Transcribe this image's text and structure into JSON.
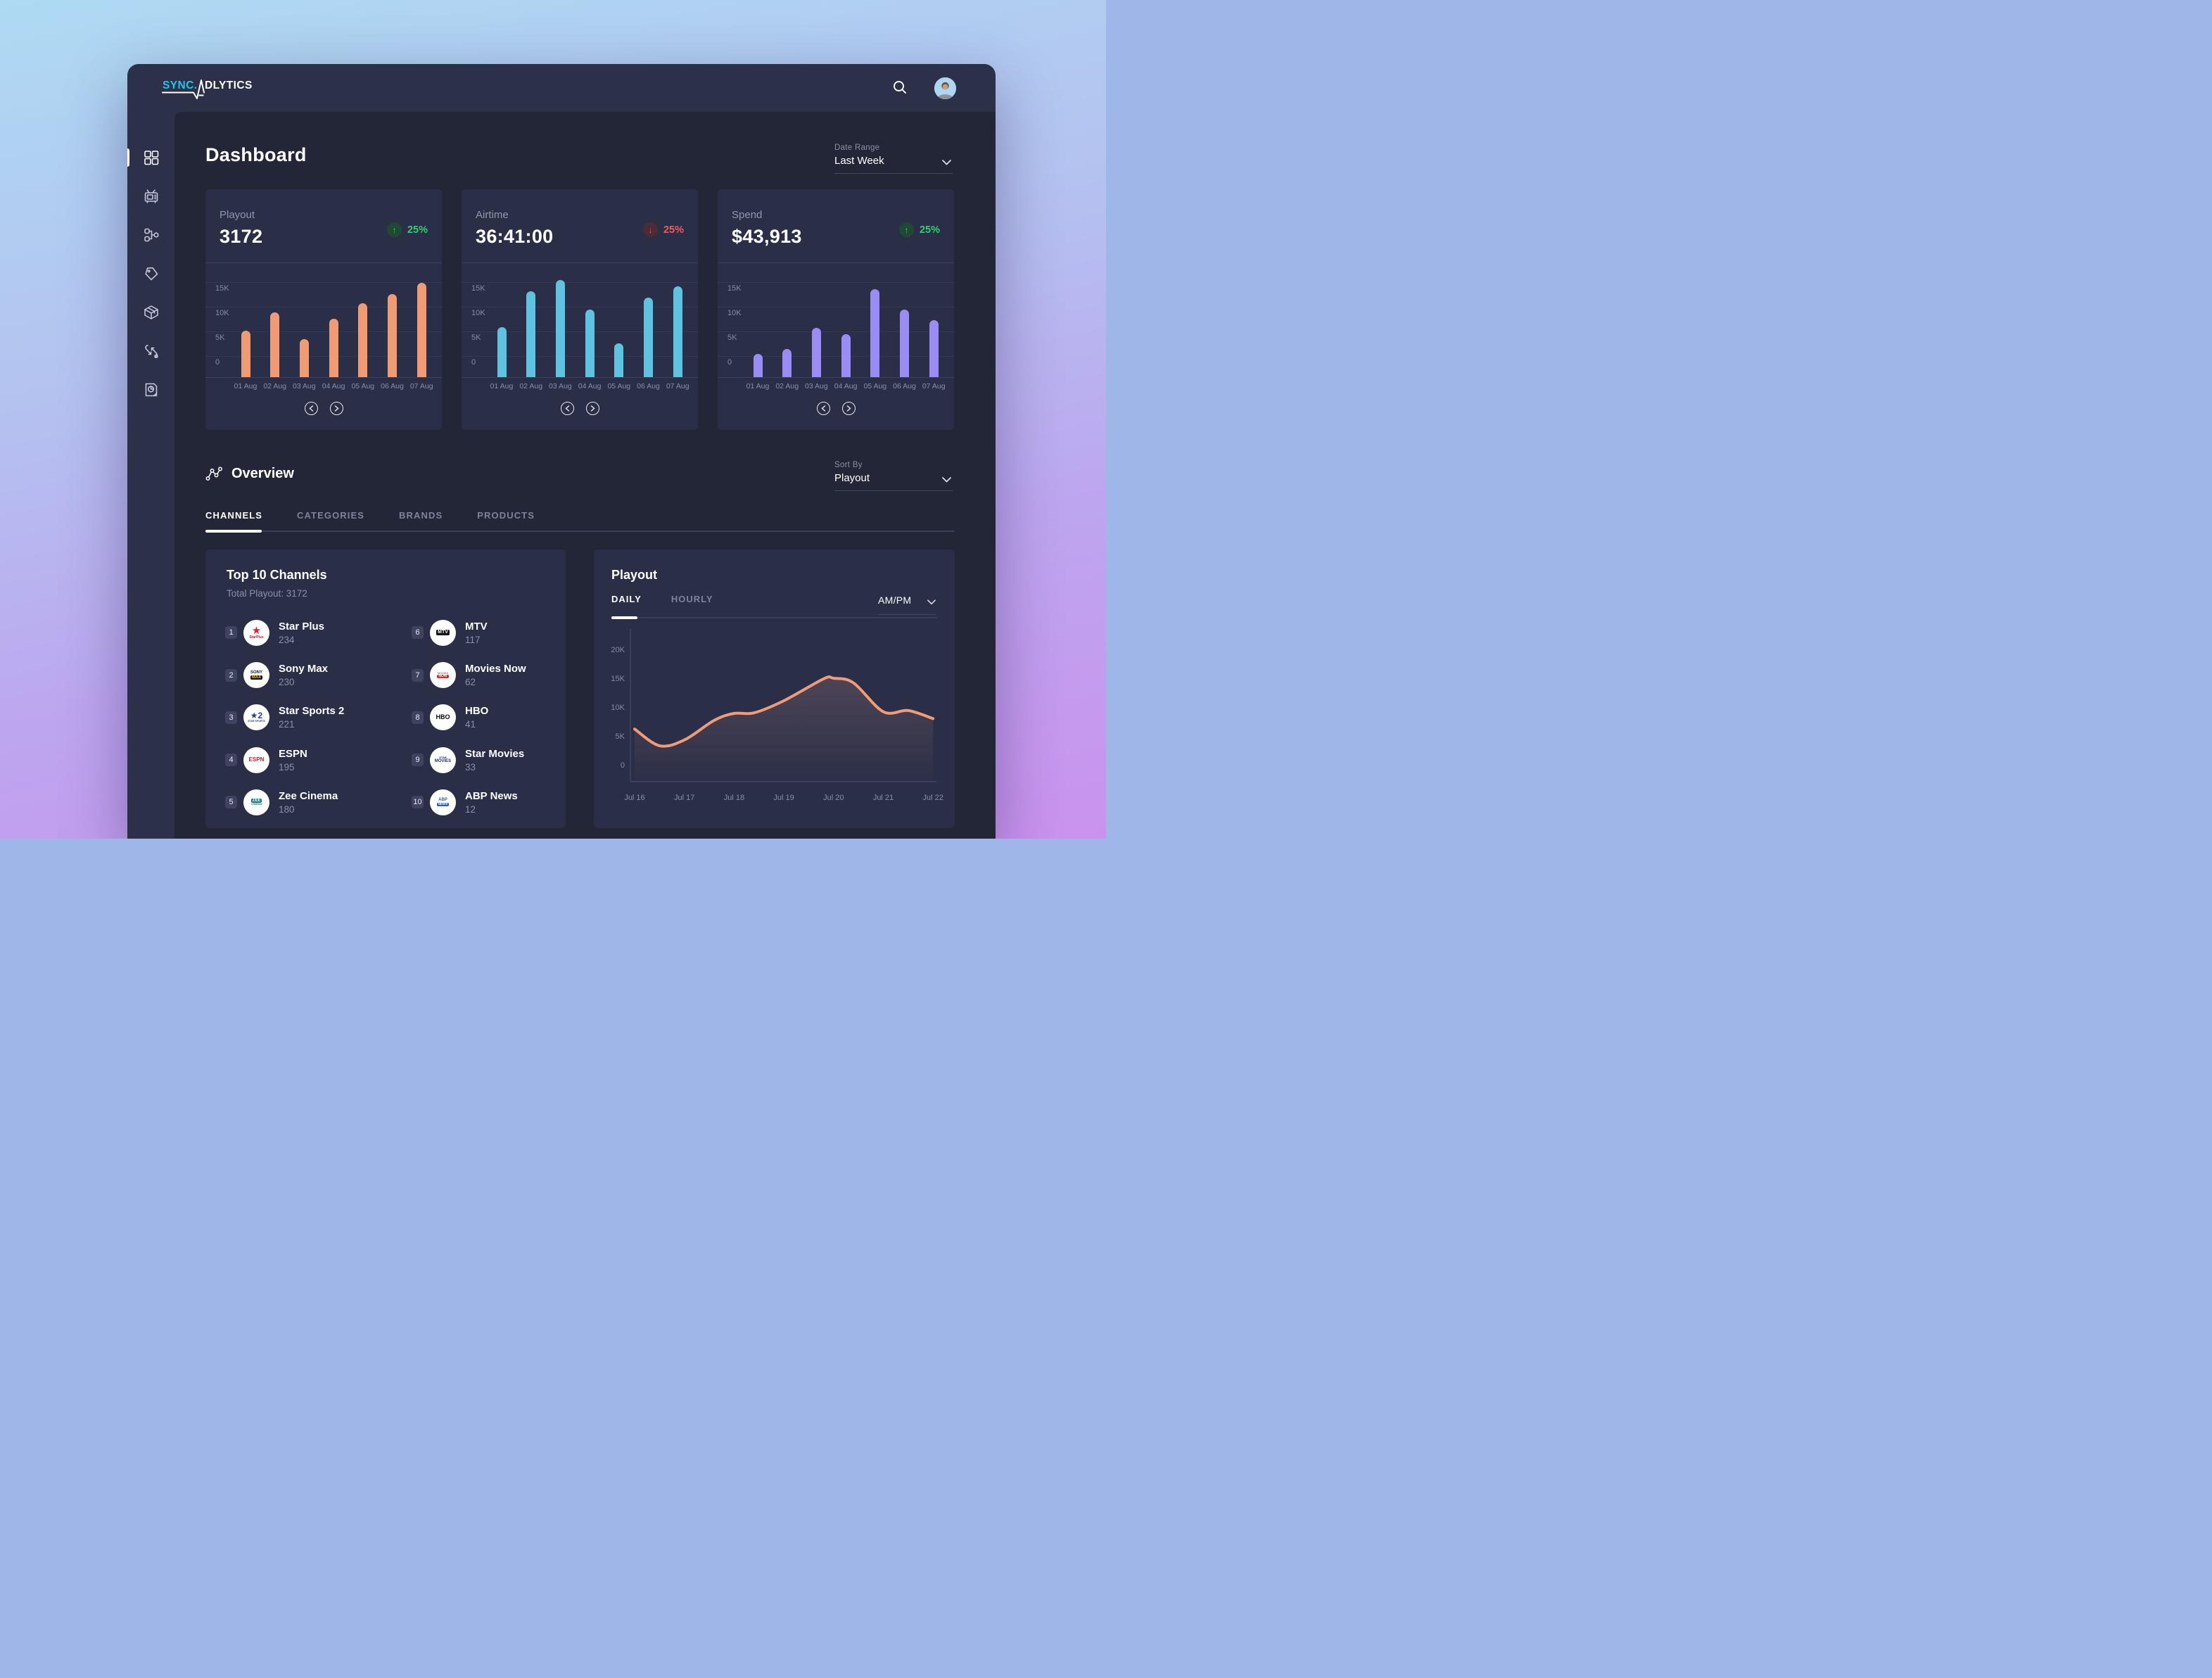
{
  "app": {
    "logo_primary": "SYNC.",
    "logo_secondary": "DLYTICS",
    "logo_accent_color": "#1fc9ea"
  },
  "header": {
    "search_icon": "magnifier",
    "avatar": "user-photo"
  },
  "sidebar": {
    "items": [
      {
        "icon": "grid-icon",
        "active": true
      },
      {
        "icon": "tv-icon",
        "active": false
      },
      {
        "icon": "flow-icon",
        "active": false
      },
      {
        "icon": "tag-icon",
        "active": false
      },
      {
        "icon": "package-icon",
        "active": false
      },
      {
        "icon": "swap-icon",
        "active": false
      },
      {
        "icon": "report-icon",
        "active": false
      }
    ]
  },
  "page_title": "Dashboard",
  "date_range": {
    "label": "Date Range",
    "value": "Last Week"
  },
  "sort_by": {
    "label": "Sort By",
    "value": "Playout"
  },
  "overview": {
    "title": "Overview",
    "tabs": [
      {
        "label": "CHANNELS",
        "active": true
      },
      {
        "label": "CATEGORIES",
        "active": false
      },
      {
        "label": "BRANDS",
        "active": false
      },
      {
        "label": "PRODUCTS",
        "active": false
      }
    ]
  },
  "stat_cards": [
    {
      "label": "Playout",
      "value": "3172",
      "delta": "25%",
      "delta_direction": "up",
      "chart_index": 0
    },
    {
      "label": "Airtime",
      "value": "36:41:00",
      "delta": "25%",
      "delta_direction": "down",
      "chart_index": 1
    },
    {
      "label": "Spend",
      "value": "$43,913",
      "delta": "25%",
      "delta_direction": "up",
      "chart_index": 2
    }
  ],
  "chart_data": [
    {
      "id": "playout-by-day",
      "type": "bar",
      "title": "Playout",
      "categories": [
        "01 Aug",
        "02 Aug",
        "03 Aug",
        "04 Aug",
        "05 Aug",
        "06 Aug",
        "07 Aug"
      ],
      "values": [
        5200,
        8800,
        3400,
        7600,
        10700,
        12600,
        14900
      ],
      "y_ticks": [
        "15K",
        "10K",
        "5K",
        "0"
      ],
      "ylim": [
        0,
        15000
      ],
      "color": "#f09b73"
    },
    {
      "id": "airtime-by-day",
      "type": "bar",
      "title": "Airtime",
      "categories": [
        "01 Aug",
        "02 Aug",
        "03 Aug",
        "04 Aug",
        "05 Aug",
        "06 Aug",
        "07 Aug"
      ],
      "values": [
        5800,
        13200,
        15400,
        9400,
        2600,
        11900,
        14200
      ],
      "y_ticks": [
        "15K",
        "10K",
        "5K",
        "0"
      ],
      "ylim": [
        0,
        15000
      ],
      "color": "#5ec3de"
    },
    {
      "id": "spend-by-day",
      "type": "bar",
      "title": "Spend",
      "categories": [
        "01 Aug",
        "02 Aug",
        "03 Aug",
        "04 Aug",
        "05 Aug",
        "06 Aug",
        "07 Aug"
      ],
      "values": [
        400,
        1500,
        5700,
        4400,
        13600,
        9400,
        7300
      ],
      "y_ticks": [
        "15K",
        "10K",
        "5K",
        "0"
      ],
      "ylim": [
        0,
        15000
      ],
      "color": "#9b8bf4"
    },
    {
      "id": "playout-daily-trend",
      "type": "area",
      "title": "Playout",
      "x_labels": [
        "Jul 16",
        "Jul 17",
        "Jul 18",
        "Jul 19",
        "Jul 20",
        "Jul 21",
        "Jul 22"
      ],
      "y_ticks": [
        "20K",
        "15K",
        "10K",
        "5K",
        "0"
      ],
      "ylim": [
        0,
        20000
      ],
      "line_color": "#f29b76",
      "points": [
        [
          0,
          6200
        ],
        [
          0.5,
          3300
        ],
        [
          1,
          4300
        ],
        [
          1.6,
          7700
        ],
        [
          2,
          8900
        ],
        [
          2.4,
          9000
        ],
        [
          3,
          11100
        ],
        [
          3.8,
          14900
        ],
        [
          4,
          15000
        ],
        [
          4.4,
          14200
        ],
        [
          5,
          9200
        ],
        [
          5.5,
          9400
        ],
        [
          6,
          8000
        ]
      ]
    }
  ],
  "pager": {
    "prev": "chevron-left-icon",
    "next": "chevron-right-icon"
  },
  "top_channels": {
    "title": "Top 10 Channels",
    "subtitle": "Total Playout: 3172",
    "items": [
      {
        "rank": "1",
        "name": "Star Plus",
        "value": "234",
        "logo": {
          "line1": "★",
          "c1": "#e01f2f",
          "s1": 15,
          "line2": "StarPlus",
          "c2": "#c41330",
          "s2": 5
        }
      },
      {
        "rank": "2",
        "name": "Sony Max",
        "value": "230",
        "logo": {
          "line1": "SONY",
          "c1": "#1a1a1a",
          "s1": 6,
          "line2": "MAX",
          "c2": "#ffd200",
          "s2": 6,
          "bg2": "#111111"
        }
      },
      {
        "rank": "3",
        "name": "Star Sports 2",
        "value": "221",
        "logo": {
          "line1": "★2",
          "c1": "#24418e",
          "s1": 12,
          "line2": "STAR SPORTS",
          "c2": "#24418e",
          "s2": 3.5
        }
      },
      {
        "rank": "4",
        "name": "ESPN",
        "value": "195",
        "logo": {
          "line1": "ESPN",
          "c1": "#cf1f25",
          "s1": 8
        }
      },
      {
        "rank": "5",
        "name": "Zee Cinema",
        "value": "180",
        "logo": {
          "line1": "ZEE",
          "c1": "#ffffff",
          "s1": 6,
          "bg1": "#0f7f76",
          "line2": "CINEMA",
          "c2": "#0f7f76",
          "s2": 4
        }
      },
      {
        "rank": "6",
        "name": "MTV",
        "value": "117",
        "logo": {
          "line1": "MTV",
          "c1": "#ffffff",
          "s1": 7,
          "bg1": "#111111"
        }
      },
      {
        "rank": "7",
        "name": "Movies Now",
        "value": "62",
        "logo": {
          "line1": "MOVIES",
          "c1": "#8a8a8a",
          "s1": 4,
          "line2": "NOW",
          "c2": "#ffffff",
          "s2": 5,
          "bg2": "#cf2a23"
        }
      },
      {
        "rank": "8",
        "name": "HBO",
        "value": "41",
        "logo": {
          "line1": "HBO",
          "c1": "#0b0b0b",
          "s1": 9
        }
      },
      {
        "rank": "9",
        "name": "Star Movies",
        "value": "33",
        "logo": {
          "line1": "STAR",
          "c1": "#1d2f66",
          "s1": 4,
          "line2": "MOVIES",
          "c2": "#1d2f66",
          "s2": 6
        }
      },
      {
        "rank": "10",
        "name": "ABP News",
        "value": "12",
        "logo": {
          "line1": "ABP",
          "c1": "#2a5fa8",
          "s1": 6,
          "line2": "NEWS",
          "c2": "#ffffff",
          "s2": 4.5,
          "bg2": "#2a5fa8"
        }
      }
    ]
  },
  "playout_panel": {
    "title": "Playout",
    "tabs": [
      {
        "label": "DAILY",
        "active": true
      },
      {
        "label": "HOURLY",
        "active": false
      }
    ],
    "period_value": "AM/PM",
    "chart_index": 3
  },
  "colors": {
    "window_bg": "#2c3049",
    "content_bg": "#232637",
    "card_bg": "#2a2e47",
    "delta_up": "#2fd26b",
    "delta_down": "#f15b5b",
    "bar_playout": "#f09b73",
    "bar_airtime": "#5ec3de",
    "bar_spend": "#9b8bf4",
    "trend_line": "#f29b76",
    "logo_accent": "#1fc9ea"
  }
}
